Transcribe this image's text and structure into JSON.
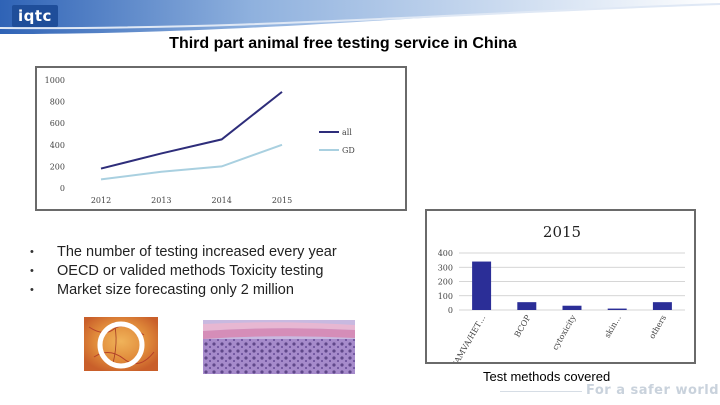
{
  "header": {
    "logo_text": "iqtc"
  },
  "slide": {
    "title": "Third part animal free testing  service in China"
  },
  "bullets": [
    "The number of testing increased every year",
    "OECD or valided methods Toxicity testing",
    "Market size forecasting only 2 million"
  ],
  "caption": "Test methods covered",
  "footer": {
    "tagline": "For a safer world"
  },
  "chart_data": [
    {
      "type": "line",
      "title": "",
      "x": [
        "2012",
        "2013",
        "2014",
        "2015"
      ],
      "ylim": [
        0,
        1000
      ],
      "yticks": [
        0,
        200,
        400,
        600,
        800,
        1000
      ],
      "legend_position": "right",
      "grid": false,
      "series": [
        {
          "name": "all",
          "values": [
            180,
            320,
            450,
            890
          ],
          "color": "#2e2d7a"
        },
        {
          "name": "GD",
          "values": [
            80,
            150,
            200,
            400
          ],
          "color": "#a9d0e0"
        }
      ]
    },
    {
      "type": "bar",
      "title": "2015",
      "categories": [
        "CAMVA/HET…",
        "BCOP",
        "cytoxicity",
        "skin…",
        "others"
      ],
      "values": [
        340,
        55,
        30,
        10,
        55
      ],
      "ylim": [
        0,
        400
      ],
      "yticks": [
        0,
        100,
        200,
        300,
        400
      ],
      "grid": true,
      "color": "#2b2e97"
    }
  ]
}
